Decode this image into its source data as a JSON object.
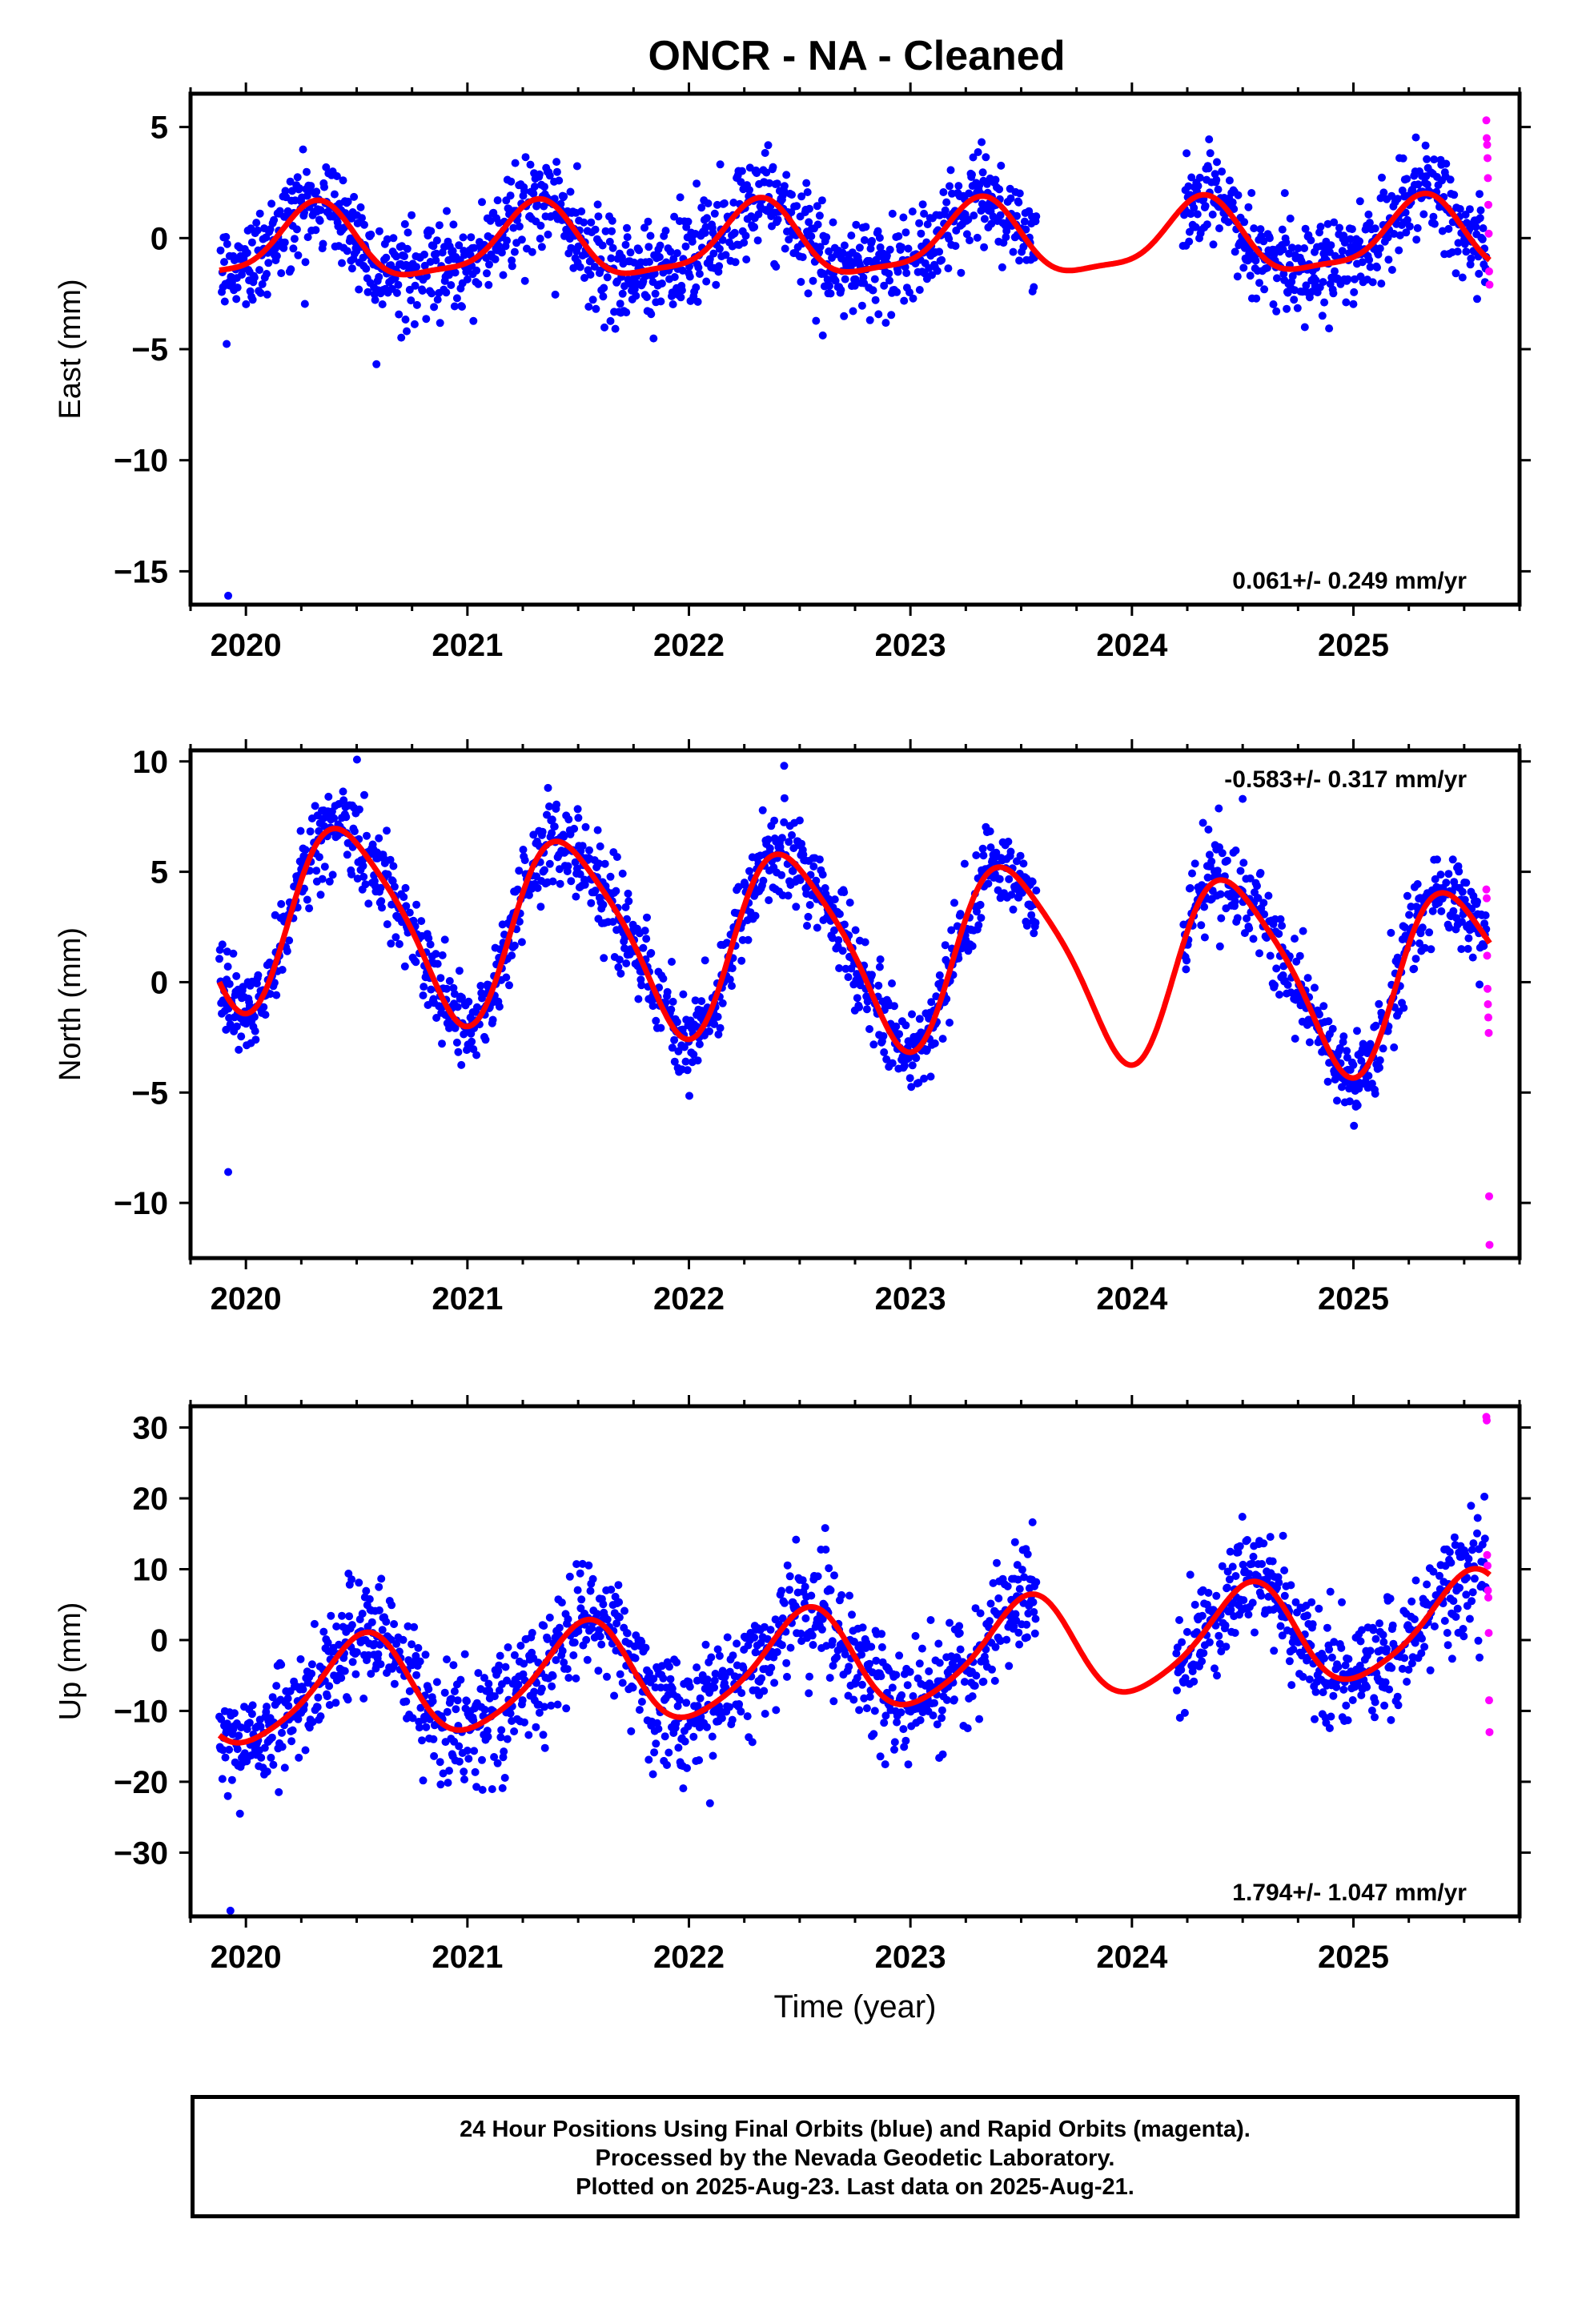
{
  "title": "ONCR  - NA - Cleaned",
  "footer": {
    "lines": [
      "24 Hour Positions Using Final Orbits (blue) and Rapid Orbits (magenta).",
      "Processed by the Nevada Geodetic Laboratory.",
      "Plotted on 2025-Aug-23. Last data on 2025-Aug-21."
    ]
  },
  "colors": {
    "final": "#0000ff",
    "rapid": "#ff00ff",
    "model": "#ff0000",
    "axis": "#000000"
  },
  "chart_data": [
    {
      "type": "scatter",
      "ylabel": "East (mm)",
      "xlabel": "",
      "xlim": [
        2019.75,
        2025.75
      ],
      "ylim": [
        -16.5,
        6.5
      ],
      "yticks": [
        5,
        0,
        -5,
        -10,
        -15
      ],
      "xticks": [
        2020,
        2021,
        2022,
        2023,
        2024,
        2025
      ],
      "rate_label": "0.061+/- 0.249 mm/yr",
      "rate_position": "bottom-right",
      "model": {
        "offset": -0.2,
        "trend": 0.061,
        "annual_sin": 1.5,
        "annual_cos": -0.6,
        "semi_sin": -0.4,
        "semi_cos": -0.2
      },
      "noise": 1.1,
      "gaps": [
        [
          2023.57,
          2024.23
        ]
      ],
      "outliers": [
        {
          "x": 2019.92,
          "y": -16.1
        }
      ],
      "rapid": [
        5.3,
        4.5,
        4.2,
        3.6,
        2.7,
        1.5,
        0.2,
        -1.5,
        -2.1
      ]
    },
    {
      "type": "scatter",
      "ylabel": "North (mm)",
      "xlabel": "",
      "xlim": [
        2019.75,
        2025.75
      ],
      "ylim": [
        -12.5,
        10.5
      ],
      "yticks": [
        10,
        5,
        0,
        -5,
        -10
      ],
      "xticks": [
        2020,
        2021,
        2022,
        2023,
        2024,
        2025
      ],
      "rate_label": "-0.583+/- 0.317 mm/yr",
      "rate_position": "top-right",
      "model": {
        "offset": 1.6,
        "trend": -0.583,
        "annual_sin": 1.0,
        "annual_cos": -4.0,
        "semi_sin": -0.4,
        "semi_cos": -0.6
      },
      "noise": 1.0,
      "gaps": [
        [
          2023.57,
          2024.23
        ]
      ],
      "outliers": [
        {
          "x": 2019.92,
          "y": -8.6
        },
        {
          "x": 2022.43,
          "y": 9.8
        },
        {
          "x": 2024.5,
          "y": 8.3
        }
      ],
      "rapid": [
        4.2,
        3.8,
        1.2,
        -0.3,
        -1.0,
        -1.6,
        -2.3,
        -9.7,
        -11.9
      ]
    },
    {
      "type": "scatter",
      "ylabel": "Up (mm)",
      "xlabel": "Time (year)",
      "xlim": [
        2019.75,
        2025.75
      ],
      "ylim": [
        -39,
        33
      ],
      "yticks": [
        30,
        20,
        10,
        0,
        -10,
        -20,
        -30
      ],
      "xticks": [
        2020,
        2021,
        2022,
        2023,
        2024,
        2025
      ],
      "rate_label": "1.794+/- 1.047 mm/yr",
      "rate_position": "bottom-right",
      "model": {
        "offset": -3.0,
        "trend": 1.794,
        "annual_sin": -1.0,
        "annual_cos": -7.0,
        "semi_sin": 1.0,
        "semi_cos": 0.5
      },
      "noise": 4.0,
      "gaps": [
        [
          2023.57,
          2024.2
        ]
      ],
      "outliers": [
        {
          "x": 2019.93,
          "y": -38.2
        }
      ],
      "rapid": [
        31.5,
        31.0,
        12.0,
        10.5,
        7.0,
        6.0,
        1.0,
        -8.5,
        -13.0
      ]
    }
  ]
}
